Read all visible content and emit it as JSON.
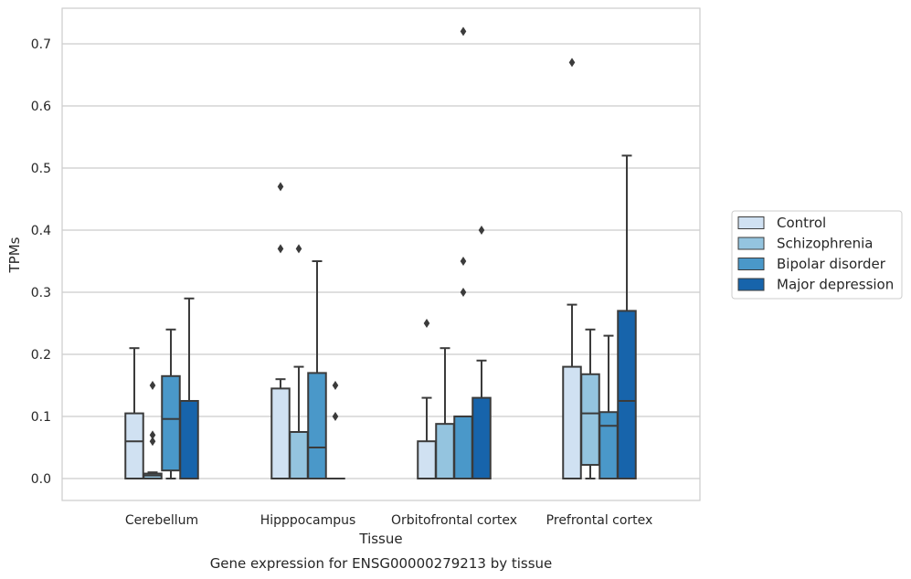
{
  "chart_data": {
    "type": "box",
    "xlabel": "Tissue",
    "ylabel": "TPMs",
    "caption": "Gene expression for ENSG00000279213 by tissue",
    "ylim": [
      -0.035,
      0.76
    ],
    "yticks": [
      "0.0",
      "0.1",
      "0.2",
      "0.3",
      "0.4",
      "0.5",
      "0.6",
      "0.7"
    ],
    "grid": true,
    "legend_position": "right",
    "categories": [
      "Cerebellum",
      "Hipppocampus",
      "Orbitofrontal cortex",
      "Prefrontal cortex"
    ],
    "series": [
      {
        "name": "Control",
        "color": "#d0e1f2",
        "boxes": [
          {
            "whislo": 0.0,
            "q1": 0.0,
            "med": 0.06,
            "q3": 0.105,
            "whishi": 0.21,
            "fliers": []
          },
          {
            "whislo": 0.0,
            "q1": 0.0,
            "med": 0.0,
            "q3": 0.145,
            "whishi": 0.16,
            "fliers": [
              0.37,
              0.47
            ]
          },
          {
            "whislo": 0.0,
            "q1": 0.0,
            "med": 0.0,
            "q3": 0.06,
            "whishi": 0.13,
            "fliers": [
              0.25
            ]
          },
          {
            "whislo": 0.0,
            "q1": 0.0,
            "med": 0.0,
            "q3": 0.18,
            "whishi": 0.28,
            "fliers": [
              0.67
            ]
          }
        ]
      },
      {
        "name": "Schizophrenia",
        "color": "#94c4df",
        "boxes": [
          {
            "whislo": 0.0,
            "q1": 0.0,
            "med": 0.005,
            "q3": 0.008,
            "whishi": 0.01,
            "fliers": [
              0.06,
              0.07,
              0.15
            ]
          },
          {
            "whislo": 0.0,
            "q1": 0.0,
            "med": 0.0,
            "q3": 0.075,
            "whishi": 0.18,
            "fliers": [
              0.37
            ]
          },
          {
            "whislo": 0.0,
            "q1": 0.0,
            "med": 0.0,
            "q3": 0.088,
            "whishi": 0.21,
            "fliers": []
          },
          {
            "whislo": 0.0,
            "q1": 0.022,
            "med": 0.105,
            "q3": 0.168,
            "whishi": 0.24,
            "fliers": []
          }
        ]
      },
      {
        "name": "Bipolar disorder",
        "color": "#4a98c9",
        "boxes": [
          {
            "whislo": 0.0,
            "q1": 0.013,
            "med": 0.096,
            "q3": 0.165,
            "whishi": 0.24,
            "fliers": []
          },
          {
            "whislo": 0.0,
            "q1": 0.0,
            "med": 0.05,
            "q3": 0.17,
            "whishi": 0.35,
            "fliers": []
          },
          {
            "whislo": 0.0,
            "q1": 0.0,
            "med": 0.0,
            "q3": 0.1,
            "whishi": 0.1,
            "fliers": [
              0.3,
              0.35,
              0.72
            ]
          },
          {
            "whislo": 0.0,
            "q1": 0.0,
            "med": 0.085,
            "q3": 0.107,
            "whishi": 0.23,
            "fliers": []
          }
        ]
      },
      {
        "name": "Major depression",
        "color": "#1764ab",
        "boxes": [
          {
            "whislo": 0.0,
            "q1": 0.0,
            "med": 0.0,
            "q3": 0.125,
            "whishi": 0.29,
            "fliers": []
          },
          {
            "whislo": 0.0,
            "q1": 0.0,
            "med": 0.0,
            "q3": 0.0,
            "whishi": 0.0,
            "fliers": [
              0.1,
              0.15
            ]
          },
          {
            "whislo": 0.0,
            "q1": 0.0,
            "med": 0.0,
            "q3": 0.13,
            "whishi": 0.19,
            "fliers": [
              0.4
            ]
          },
          {
            "whislo": 0.0,
            "q1": 0.0,
            "med": 0.125,
            "q3": 0.27,
            "whishi": 0.52,
            "fliers": []
          }
        ]
      }
    ]
  }
}
